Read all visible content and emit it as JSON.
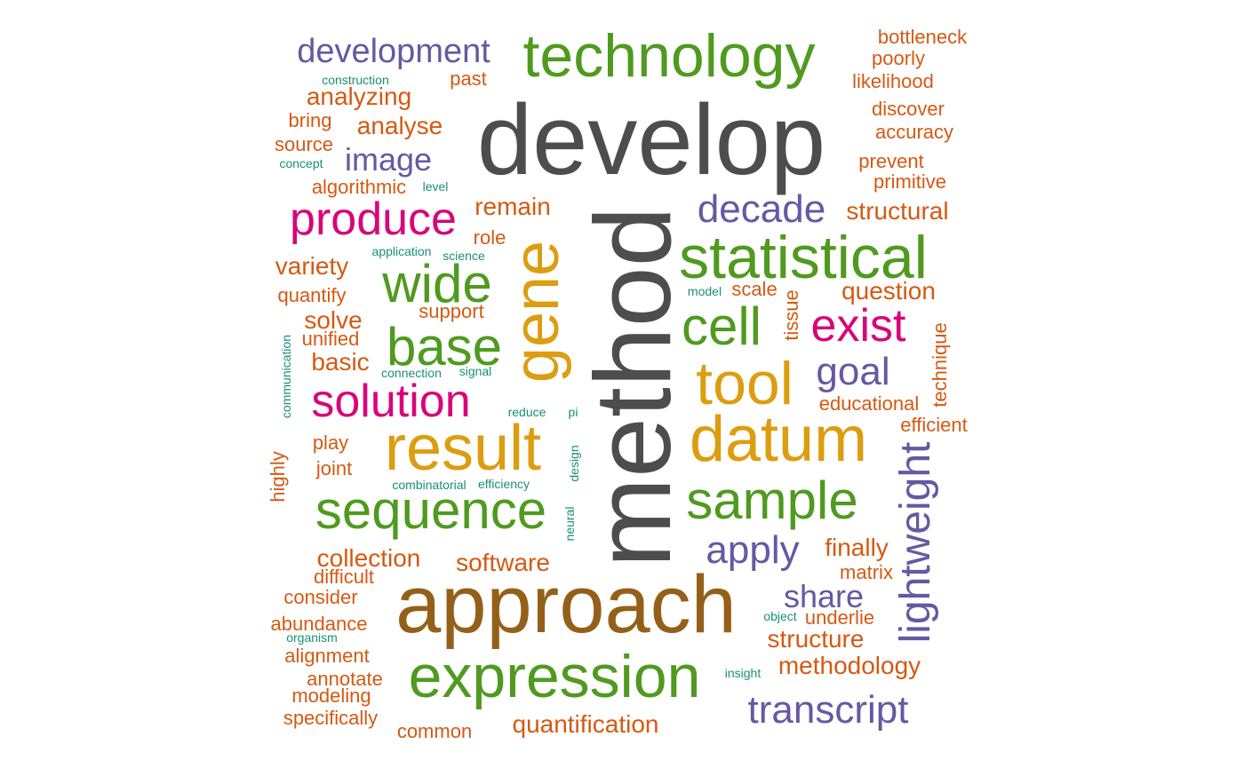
{
  "colors": {
    "gray": "#4d4d4d",
    "brown": "#946019",
    "green": "#4f9a1f",
    "gold": "#dc9d10",
    "magenta": "#d8057a",
    "purple": "#6658a2",
    "orange": "#d55912",
    "teal": "#1a8f74"
  },
  "words": [
    {
      "text": "method",
      "color": "gray"
    },
    {
      "text": "develop",
      "color": "gray"
    },
    {
      "text": "approach",
      "color": "brown"
    },
    {
      "text": "technology",
      "color": "green"
    },
    {
      "text": "result",
      "color": "gold"
    },
    {
      "text": "datum",
      "color": "gold"
    },
    {
      "text": "gene",
      "color": "gold"
    },
    {
      "text": "expression",
      "color": "green"
    },
    {
      "text": "statistical",
      "color": "green"
    },
    {
      "text": "tool",
      "color": "gold"
    },
    {
      "text": "sequence",
      "color": "green"
    },
    {
      "text": "sample",
      "color": "green"
    },
    {
      "text": "base",
      "color": "green"
    },
    {
      "text": "cell",
      "color": "green"
    },
    {
      "text": "wide",
      "color": "green"
    },
    {
      "text": "produce",
      "color": "magenta"
    },
    {
      "text": "solution",
      "color": "magenta"
    },
    {
      "text": "exist",
      "color": "magenta"
    },
    {
      "text": "lightweight",
      "color": "purple"
    },
    {
      "text": "transcript",
      "color": "purple"
    },
    {
      "text": "decade",
      "color": "purple"
    },
    {
      "text": "development",
      "color": "purple"
    },
    {
      "text": "apply",
      "color": "purple"
    },
    {
      "text": "goal",
      "color": "purple"
    },
    {
      "text": "image",
      "color": "purple"
    },
    {
      "text": "share",
      "color": "purple"
    },
    {
      "text": "bottleneck",
      "color": "orange"
    },
    {
      "text": "poorly",
      "color": "orange"
    },
    {
      "text": "likelihood",
      "color": "orange"
    },
    {
      "text": "discover",
      "color": "orange"
    },
    {
      "text": "accuracy",
      "color": "orange"
    },
    {
      "text": "prevent",
      "color": "orange"
    },
    {
      "text": "primitive",
      "color": "orange"
    },
    {
      "text": "structural",
      "color": "orange"
    },
    {
      "text": "question",
      "color": "orange"
    },
    {
      "text": "educational",
      "color": "orange"
    },
    {
      "text": "efficient",
      "color": "orange"
    },
    {
      "text": "finally",
      "color": "orange"
    },
    {
      "text": "matrix",
      "color": "orange"
    },
    {
      "text": "underlie",
      "color": "orange"
    },
    {
      "text": "structure",
      "color": "orange"
    },
    {
      "text": "methodology",
      "color": "orange"
    },
    {
      "text": "quantification",
      "color": "orange"
    },
    {
      "text": "software",
      "color": "orange"
    },
    {
      "text": "common",
      "color": "orange"
    },
    {
      "text": "specifically",
      "color": "orange"
    },
    {
      "text": "modeling",
      "color": "orange"
    },
    {
      "text": "annotate",
      "color": "orange"
    },
    {
      "text": "alignment",
      "color": "orange"
    },
    {
      "text": "abundance",
      "color": "orange"
    },
    {
      "text": "consider",
      "color": "orange"
    },
    {
      "text": "difficult",
      "color": "orange"
    },
    {
      "text": "collection",
      "color": "orange"
    },
    {
      "text": "joint",
      "color": "orange"
    },
    {
      "text": "play",
      "color": "orange"
    },
    {
      "text": "highly",
      "color": "orange"
    },
    {
      "text": "basic",
      "color": "orange"
    },
    {
      "text": "unified",
      "color": "orange"
    },
    {
      "text": "solve",
      "color": "orange"
    },
    {
      "text": "support",
      "color": "orange"
    },
    {
      "text": "quantify",
      "color": "orange"
    },
    {
      "text": "variety",
      "color": "orange"
    },
    {
      "text": "role",
      "color": "orange"
    },
    {
      "text": "remain",
      "color": "orange"
    },
    {
      "text": "algorithmic",
      "color": "orange"
    },
    {
      "text": "source",
      "color": "orange"
    },
    {
      "text": "bring",
      "color": "orange"
    },
    {
      "text": "analyse",
      "color": "orange"
    },
    {
      "text": "analyzing",
      "color": "orange"
    },
    {
      "text": "past",
      "color": "orange"
    },
    {
      "text": "scale",
      "color": "orange"
    },
    {
      "text": "tissue",
      "color": "orange"
    },
    {
      "text": "technique",
      "color": "orange"
    },
    {
      "text": "construction",
      "color": "teal"
    },
    {
      "text": "concept",
      "color": "teal"
    },
    {
      "text": "level",
      "color": "teal"
    },
    {
      "text": "application",
      "color": "teal"
    },
    {
      "text": "science",
      "color": "teal"
    },
    {
      "text": "model",
      "color": "teal"
    },
    {
      "text": "communication",
      "color": "teal"
    },
    {
      "text": "connection",
      "color": "teal"
    },
    {
      "text": "signal",
      "color": "teal"
    },
    {
      "text": "reduce",
      "color": "teal"
    },
    {
      "text": "pi",
      "color": "teal"
    },
    {
      "text": "design",
      "color": "teal"
    },
    {
      "text": "combinatorial",
      "color": "teal"
    },
    {
      "text": "efficiency",
      "color": "teal"
    },
    {
      "text": "neural",
      "color": "teal"
    },
    {
      "text": "object",
      "color": "teal"
    },
    {
      "text": "organism",
      "color": "teal"
    },
    {
      "text": "insight",
      "color": "teal"
    }
  ]
}
